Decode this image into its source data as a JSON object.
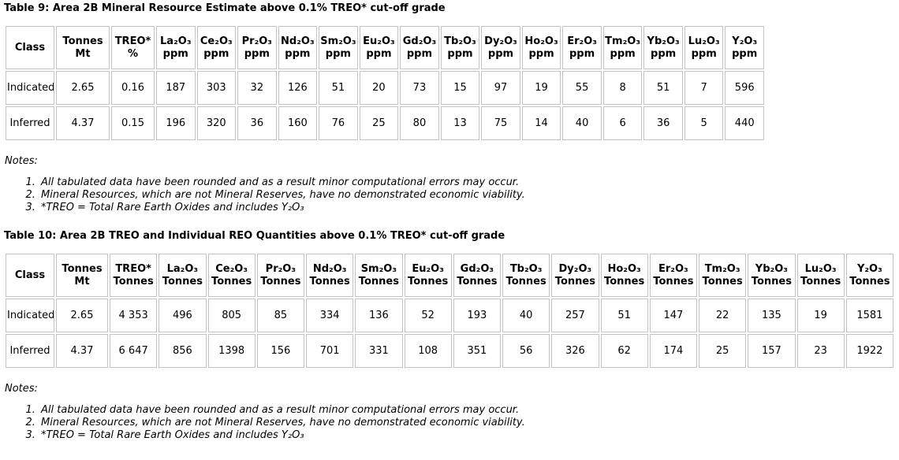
{
  "section1": {
    "title": "Table 9: Area 2B Mineral Resource Estimate above 0.1% TREO* cut-off grade",
    "table": {
      "headers": [
        {
          "label": "Class",
          "sub": ""
        },
        {
          "label": "Tonnes",
          "sub": "Mt"
        },
        {
          "label": "TREO*",
          "sub": "%"
        },
        {
          "label": "La₂O₃",
          "sub": "ppm"
        },
        {
          "label": "Ce₂O₃",
          "sub": "ppm"
        },
        {
          "label": "Pr₂O₃",
          "sub": "ppm"
        },
        {
          "label": "Nd₂O₃",
          "sub": "ppm"
        },
        {
          "label": "Sm₂O₃",
          "sub": "ppm"
        },
        {
          "label": "Eu₂O₃",
          "sub": "ppm"
        },
        {
          "label": "Gd₂O₃",
          "sub": "ppm"
        },
        {
          "label": "Tb₂O₃",
          "sub": "ppm"
        },
        {
          "label": "Dy₂O₃",
          "sub": "ppm"
        },
        {
          "label": "Ho₂O₃",
          "sub": "ppm"
        },
        {
          "label": "Er₂O₃",
          "sub": "ppm"
        },
        {
          "label": "Tm₂O₃",
          "sub": "ppm"
        },
        {
          "label": "Yb₂O₃",
          "sub": "ppm"
        },
        {
          "label": "Lu₂O₃",
          "sub": "ppm"
        },
        {
          "label": "Y₂O₃",
          "sub": "ppm"
        }
      ],
      "rows": [
        [
          "Indicated",
          "2.65",
          "0.16",
          "187",
          "303",
          "32",
          "126",
          "51",
          "20",
          "73",
          "15",
          "97",
          "19",
          "55",
          "8",
          "51",
          "7",
          "596"
        ],
        [
          "Inferred",
          "4.37",
          "0.15",
          "196",
          "320",
          "36",
          "160",
          "76",
          "25",
          "80",
          "13",
          "75",
          "14",
          "40",
          "6",
          "36",
          "5",
          "440"
        ]
      ]
    },
    "notes_label": "Notes:",
    "notes": [
      "All tabulated data have been rounded and as a result minor computational errors may occur.",
      "Mineral Resources, which are not Mineral Reserves, have no demonstrated economic viability.",
      "*TREO = Total Rare Earth Oxides and includes Y₂O₃"
    ]
  },
  "section2": {
    "title": "Table 10: Area 2B TREO and Individual REO Quantities above 0.1% TREO* cut-off grade",
    "table": {
      "headers": [
        {
          "label": "Class",
          "sub": ""
        },
        {
          "label": "Tonnes",
          "sub": "Mt"
        },
        {
          "label": "TREO*",
          "sub": "Tonnes"
        },
        {
          "label": "La₂O₃",
          "sub": "Tonnes"
        },
        {
          "label": "Ce₂O₃",
          "sub": "Tonnes"
        },
        {
          "label": "Pr₂O₃",
          "sub": "Tonnes"
        },
        {
          "label": "Nd₂O₃",
          "sub": "Tonnes"
        },
        {
          "label": "Sm₂O₃",
          "sub": "Tonnes"
        },
        {
          "label": "Eu₂O₃",
          "sub": "Tonnes"
        },
        {
          "label": "Gd₂O₃",
          "sub": "Tonnes"
        },
        {
          "label": "Tb₂O₃",
          "sub": "Tonnes"
        },
        {
          "label": "Dy₂O₃",
          "sub": "Tonnes"
        },
        {
          "label": "Ho₂O₃",
          "sub": "Tonnes"
        },
        {
          "label": "Er₂O₃",
          "sub": "Tonnes"
        },
        {
          "label": "Tm₂O₃",
          "sub": "Tonnes"
        },
        {
          "label": "Yb₂O₃",
          "sub": "Tonnes"
        },
        {
          "label": "Lu₂O₃",
          "sub": "Tonnes"
        },
        {
          "label": "Y₂O₃",
          "sub": "Tonnes"
        }
      ],
      "rows": [
        [
          "Indicated",
          "2.65",
          "4 353",
          "496",
          "805",
          "85",
          "334",
          "136",
          "52",
          "193",
          "40",
          "257",
          "51",
          "147",
          "22",
          "135",
          "19",
          "1581"
        ],
        [
          "Inferred",
          "4.37",
          "6 647",
          "856",
          "1398",
          "156",
          "701",
          "331",
          "108",
          "351",
          "56",
          "326",
          "62",
          "174",
          "25",
          "157",
          "23",
          "1922"
        ]
      ]
    },
    "notes_label": "Notes:",
    "notes": [
      "All tabulated data have been rounded and as a result minor computational errors may occur.",
      "Mineral Resources, which are not Mineral Reserves, have no demonstrated economic viability.",
      "*TREO = Total Rare Earth Oxides and includes Y₂O₃"
    ]
  },
  "colors": {
    "table_border": "#c3c3c3",
    "text": "#000000",
    "background": "#ffffff"
  }
}
